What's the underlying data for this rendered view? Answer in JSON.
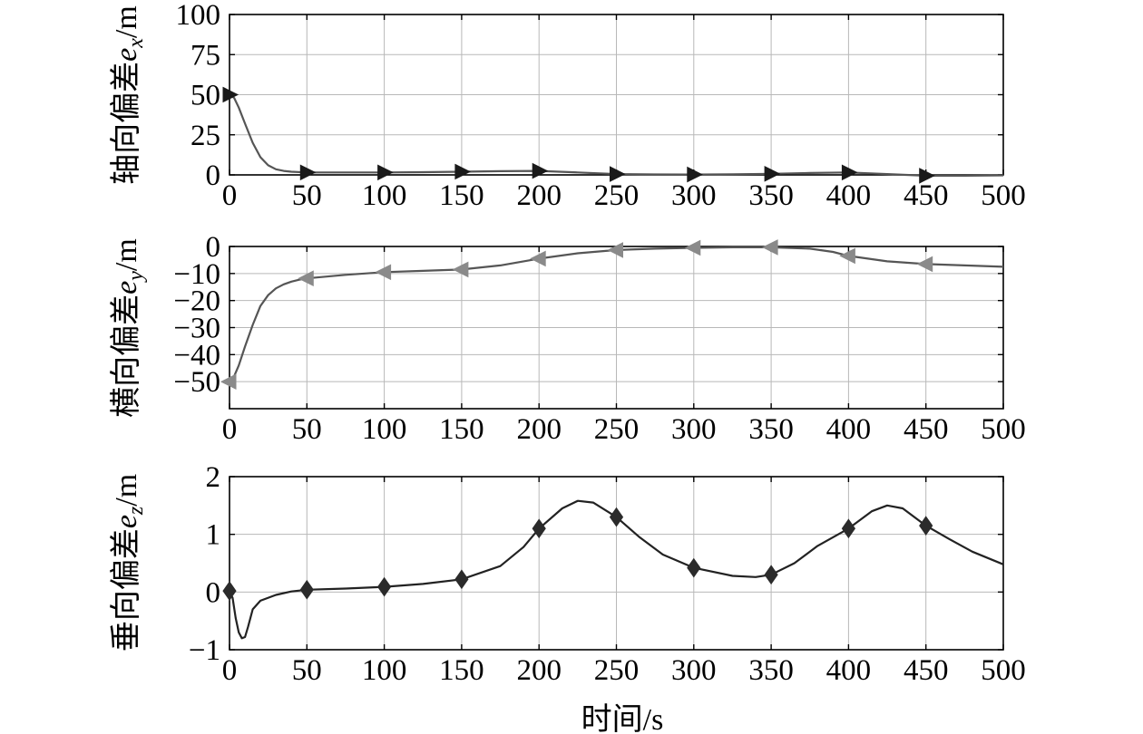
{
  "figure": {
    "xlabel": "时间/s"
  },
  "chart_data": [
    {
      "type": "line",
      "ylabel": "轴向偏差e_x/m",
      "ylabel_main": "轴向偏差",
      "ylabel_var": "e",
      "ylabel_sub": "x",
      "ylabel_unit": "/m",
      "xlim": [
        0,
        500
      ],
      "ylim": [
        0,
        100
      ],
      "xticks": [
        0,
        50,
        100,
        150,
        200,
        250,
        300,
        350,
        400,
        450,
        500
      ],
      "yticks": [
        0,
        25,
        50,
        75,
        100
      ],
      "grid": true,
      "line_color": "#555555",
      "marker": "triangle-right",
      "marker_color": "#1a1a1a",
      "series": [
        {
          "x": [
            0,
            3,
            6,
            10,
            15,
            20,
            25,
            30,
            35,
            40,
            50,
            75,
            100,
            125,
            150,
            175,
            200,
            225,
            250,
            275,
            300,
            325,
            350,
            375,
            400,
            425,
            450,
            475,
            500
          ],
          "values": [
            50,
            48,
            42,
            32,
            20,
            11,
            6,
            3.5,
            2.5,
            2,
            1.5,
            1.5,
            1.5,
            1.7,
            2,
            2.3,
            2.5,
            1.5,
            0.5,
            0.3,
            0.2,
            0.4,
            0.7,
            1.2,
            1.5,
            0.5,
            -0.5,
            -0.5,
            -0.3
          ]
        }
      ],
      "markers": [
        {
          "x": 0,
          "y": 50
        },
        {
          "x": 50,
          "y": 1.5
        },
        {
          "x": 100,
          "y": 1.5
        },
        {
          "x": 150,
          "y": 2
        },
        {
          "x": 200,
          "y": 2.5
        },
        {
          "x": 250,
          "y": 0.5
        },
        {
          "x": 300,
          "y": 0.2
        },
        {
          "x": 350,
          "y": 0.7
        },
        {
          "x": 400,
          "y": 1.5
        },
        {
          "x": 450,
          "y": -0.5
        }
      ]
    },
    {
      "type": "line",
      "ylabel": "横向偏差e_y/m",
      "ylabel_main": "横向偏差",
      "ylabel_var": "e",
      "ylabel_sub": "y",
      "ylabel_unit": "/m",
      "xlim": [
        0,
        500
      ],
      "ylim": [
        -60,
        0
      ],
      "xticks": [
        0,
        50,
        100,
        150,
        200,
        250,
        300,
        350,
        400,
        450,
        500
      ],
      "yticks": [
        0,
        -10,
        -20,
        -30,
        -40,
        -50
      ],
      "ytick_labels": [
        "0",
        "−10",
        "−20",
        "−30",
        "−40",
        "−50"
      ],
      "grid": true,
      "line_color": "#555555",
      "marker": "triangle-left",
      "marker_color": "#8a8a8a",
      "series": [
        {
          "x": [
            0,
            3,
            6,
            10,
            15,
            20,
            25,
            30,
            35,
            40,
            45,
            50,
            75,
            100,
            125,
            150,
            175,
            200,
            225,
            250,
            275,
            300,
            325,
            350,
            375,
            390,
            400,
            425,
            450,
            475,
            500
          ],
          "values": [
            -50,
            -48,
            -44,
            -37,
            -29,
            -22,
            -18,
            -15.5,
            -14,
            -13,
            -12.3,
            -11.8,
            -10.5,
            -9.5,
            -9,
            -8.5,
            -7,
            -4.5,
            -2.5,
            -1.3,
            -0.8,
            -0.5,
            -0.3,
            -0.3,
            -0.8,
            -2,
            -3.5,
            -5.5,
            -6.5,
            -7,
            -7.5
          ]
        }
      ],
      "markers": [
        {
          "x": 0,
          "y": -50
        },
        {
          "x": 50,
          "y": -11.8
        },
        {
          "x": 100,
          "y": -9.5
        },
        {
          "x": 150,
          "y": -8.5
        },
        {
          "x": 200,
          "y": -4.5
        },
        {
          "x": 250,
          "y": -1.3
        },
        {
          "x": 300,
          "y": -0.5
        },
        {
          "x": 350,
          "y": -0.3
        },
        {
          "x": 400,
          "y": -3.5
        },
        {
          "x": 450,
          "y": -6.5
        }
      ]
    },
    {
      "type": "line",
      "ylabel": "垂向偏差e_z/m",
      "ylabel_main": "垂向偏差",
      "ylabel_var": "e",
      "ylabel_sub": "z",
      "ylabel_unit": "/m",
      "xlim": [
        0,
        500
      ],
      "ylim": [
        -1,
        2
      ],
      "xticks": [
        0,
        50,
        100,
        150,
        200,
        250,
        300,
        350,
        400,
        450,
        500
      ],
      "yticks": [
        -1,
        0,
        1,
        2
      ],
      "ytick_labels": [
        "−1",
        "0",
        "1",
        "2"
      ],
      "grid": true,
      "line_color": "#222222",
      "marker": "diamond",
      "marker_color": "#2b2b2b",
      "series": [
        {
          "x": [
            0,
            2,
            4,
            6,
            8,
            10,
            12,
            15,
            20,
            30,
            40,
            50,
            75,
            100,
            125,
            150,
            175,
            190,
            200,
            215,
            225,
            235,
            250,
            265,
            280,
            300,
            325,
            340,
            350,
            365,
            380,
            400,
            415,
            425,
            435,
            450,
            465,
            480,
            500
          ],
          "values": [
            0,
            -0.1,
            -0.45,
            -0.7,
            -0.8,
            -0.78,
            -0.6,
            -0.3,
            -0.15,
            -0.05,
            0.01,
            0.04,
            0.06,
            0.09,
            0.14,
            0.22,
            0.45,
            0.78,
            1.1,
            1.45,
            1.58,
            1.55,
            1.3,
            0.95,
            0.65,
            0.42,
            0.28,
            0.26,
            0.3,
            0.5,
            0.8,
            1.1,
            1.4,
            1.5,
            1.45,
            1.15,
            0.92,
            0.7,
            0.48
          ]
        }
      ],
      "markers": [
        {
          "x": 0,
          "y": 0.02
        },
        {
          "x": 50,
          "y": 0.04
        },
        {
          "x": 100,
          "y": 0.09
        },
        {
          "x": 150,
          "y": 0.22
        },
        {
          "x": 200,
          "y": 1.1
        },
        {
          "x": 250,
          "y": 1.3
        },
        {
          "x": 300,
          "y": 0.42
        },
        {
          "x": 350,
          "y": 0.3
        },
        {
          "x": 400,
          "y": 1.1
        },
        {
          "x": 450,
          "y": 1.15
        }
      ]
    }
  ]
}
